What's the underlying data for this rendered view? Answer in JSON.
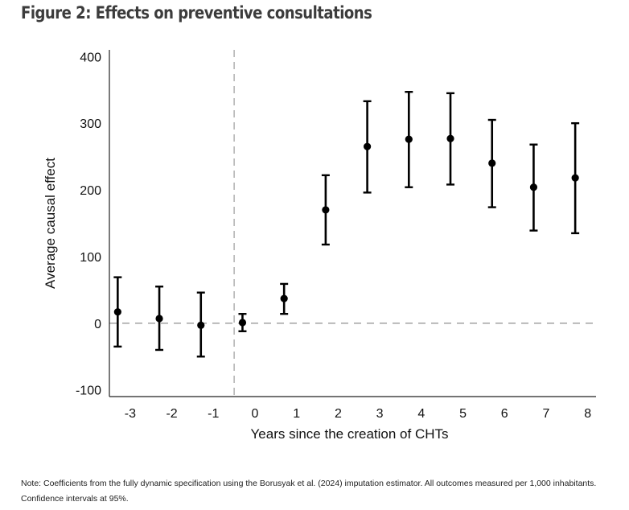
{
  "figure": {
    "title": "Figure 2: Effects on preventive consultations",
    "note": "Note: Coefficients from the fully dynamic specification using the Borusyak et al. (2024) imputation estimator. All outcomes measured per 1,000 inhabitants. Confidence intervals at 95%."
  },
  "chart_data": {
    "type": "scatter",
    "title": "",
    "xlabel": "Years since the creation of CHTs",
    "ylabel": "Average causal effect",
    "xlim": [
      -3.5,
      8.2
    ],
    "ylim": [
      -110,
      410
    ],
    "xticks": [
      -3,
      -2,
      -1,
      0,
      1,
      2,
      3,
      4,
      5,
      6,
      7,
      8
    ],
    "yticks": [
      -100,
      0,
      100,
      200,
      300,
      400
    ],
    "reference_lines": {
      "horizontal_y": 0,
      "vertical_x": -0.5
    },
    "series": [
      {
        "x": [
          -3.3,
          -2.3,
          -1.3,
          -0.3,
          0.7,
          1.7,
          2.7,
          3.7,
          4.7,
          5.7,
          6.7,
          7.7
        ],
        "estimate": [
          17,
          7,
          -3,
          1,
          37,
          170,
          265,
          276,
          277,
          240,
          204,
          218
        ],
        "ci_lower": [
          -35,
          -40,
          -50,
          -12,
          14,
          118,
          196,
          204,
          208,
          174,
          139,
          135
        ],
        "ci_upper": [
          69,
          55,
          46,
          14,
          59,
          222,
          333,
          347,
          345,
          305,
          268,
          300
        ]
      }
    ],
    "grid": false,
    "marker_color": "#000000"
  }
}
